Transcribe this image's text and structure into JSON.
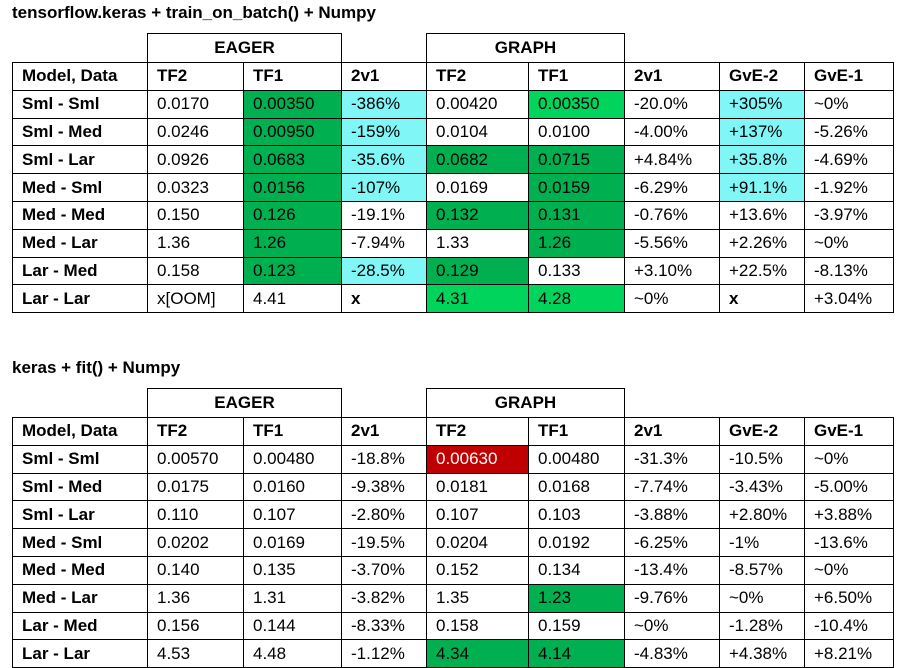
{
  "tables": [
    {
      "title": "tensorflow.keras + train_on_batch() + Numpy",
      "groups": [
        "EAGER",
        "GRAPH"
      ],
      "header": [
        "Model, Data",
        "TF2",
        "TF1",
        "2v1",
        "TF2",
        "TF1",
        "2v1",
        "GvE-2",
        "GvE-1"
      ],
      "rows": [
        [
          "Sml - Sml",
          "0.0170",
          "0.00350",
          "-386%",
          "0.00420",
          "0.00350",
          "-20.0%",
          "+305%",
          "~0%"
        ],
        [
          "Sml - Med",
          "0.0246",
          "0.00950",
          "-159%",
          "0.0104",
          "0.0100",
          "-4.00%",
          "+137%",
          "-5.26%"
        ],
        [
          "Sml - Lar",
          "0.0926",
          "0.0683",
          "-35.6%",
          "0.0682",
          "0.0715",
          "+4.84%",
          "+35.8%",
          "-4.69%"
        ],
        [
          "Med - Sml",
          "0.0323",
          "0.0156",
          "-107%",
          "0.0169",
          "0.0159",
          "-6.29%",
          "+91.1%",
          "-1.92%"
        ],
        [
          "Med - Med",
          "0.150",
          "0.126",
          "-19.1%",
          "0.132",
          "0.131",
          "-0.76%",
          "+13.6%",
          "-3.97%"
        ],
        [
          "Med - Lar",
          "1.36",
          "1.26",
          "-7.94%",
          "1.33",
          "1.26",
          "-5.56%",
          "+2.26%",
          "~0%"
        ],
        [
          "Lar - Med",
          "0.158",
          "0.123",
          "-28.5%",
          "0.129",
          "0.133",
          "+3.10%",
          "+22.5%",
          "-8.13%"
        ],
        [
          "Lar - Lar",
          "x[OOM]",
          "4.41",
          "x",
          "4.31",
          "4.28",
          "~0%",
          "x",
          "+3.04%"
        ]
      ]
    },
    {
      "title": "keras + fit() + Numpy",
      "groups": [
        "EAGER",
        "GRAPH"
      ],
      "header": [
        "Model, Data",
        "TF2",
        "TF1",
        "2v1",
        "TF2",
        "TF1",
        "2v1",
        "GvE-2",
        "GvE-1"
      ],
      "rows": [
        [
          "Sml - Sml",
          "0.00570",
          "0.00480",
          "-18.8%",
          "0.00630",
          "0.00480",
          "-31.3%",
          "-10.5%",
          "~0%"
        ],
        [
          "Sml - Med",
          "0.0175",
          "0.0160",
          "-9.38%",
          "0.0181",
          "0.0168",
          "-7.74%",
          "-3.43%",
          "-5.00%"
        ],
        [
          "Sml - Lar",
          "0.110",
          "0.107",
          "-2.80%",
          "0.107",
          "0.103",
          "-3.88%",
          "+2.80%",
          "+3.88%"
        ],
        [
          "Med - Sml",
          "0.0202",
          "0.0169",
          "-19.5%",
          "0.0204",
          "0.0192",
          "-6.25%",
          "-1%",
          "-13.6%"
        ],
        [
          "Med - Med",
          "0.140",
          "0.135",
          "-3.70%",
          "0.152",
          "0.134",
          "-13.4%",
          "-8.57%",
          "~0%"
        ],
        [
          "Med - Lar",
          "1.36",
          "1.31",
          "-3.82%",
          "1.35",
          "1.23",
          "-9.76%",
          "~0%",
          "+6.50%"
        ],
        [
          "Lar - Med",
          "0.156",
          "0.144",
          "-8.33%",
          "0.158",
          "0.159",
          "~0%",
          "-1.28%",
          "-10.4%"
        ],
        [
          "Lar - Lar",
          "4.53",
          "4.48",
          "-1.12%",
          "4.34",
          "4.14",
          "-4.83%",
          "+4.38%",
          "+8.21%"
        ]
      ]
    }
  ]
}
